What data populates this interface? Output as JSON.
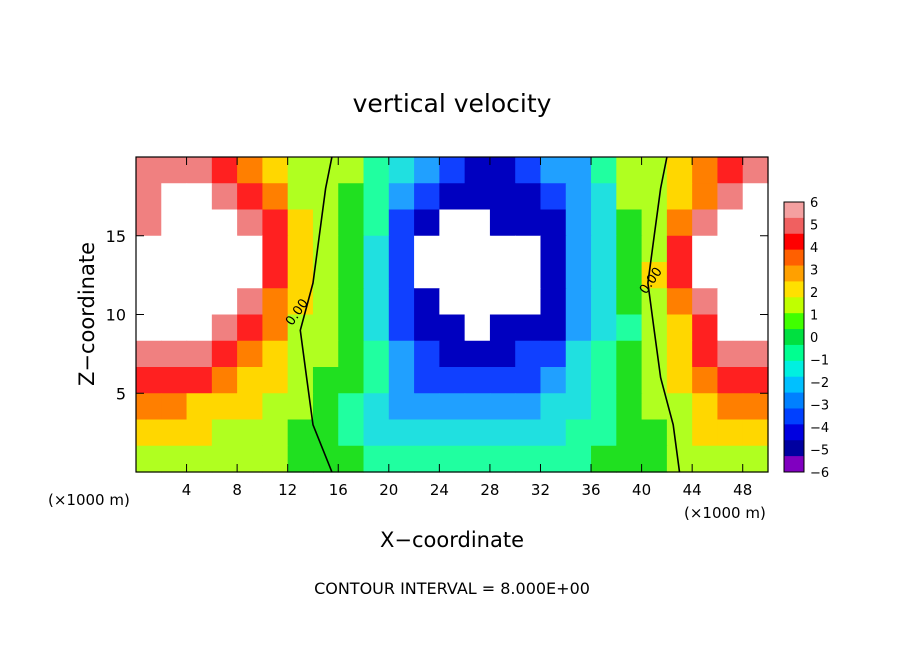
{
  "chart_data": {
    "type": "heatmap",
    "title": "vertical velocity",
    "xlabel": "X−coordinate",
    "ylabel": "Z−coordinate",
    "x_unit_left": "(×1000 m)",
    "x_unit_right": "(×1000 m)",
    "xlim": [
      0,
      50
    ],
    "ylim": [
      0,
      20
    ],
    "x_ticks": [
      4,
      8,
      12,
      16,
      20,
      24,
      28,
      32,
      36,
      40,
      44,
      48
    ],
    "y_ticks": [
      5,
      10,
      15
    ],
    "colorbar": {
      "ticks": [
        "6",
        "5",
        "4",
        "3",
        "2",
        "1",
        "0",
        "−1",
        "−2",
        "−3",
        "−4",
        "−5",
        "−6"
      ],
      "range": [
        -6,
        6
      ]
    },
    "contour_labels": [
      {
        "text": "0.00",
        "x": 13,
        "y": 10
      },
      {
        "text": "0.00",
        "x": 41,
        "y": 12
      }
    ],
    "footer": "CONTOUR INTERVAL = 8.000E+00",
    "cells": [
      [
        "p5",
        "p5",
        "p5",
        "p4",
        "p3",
        "p2",
        "p1",
        "p1",
        "p1",
        "n1",
        "n2",
        "n3",
        "n4",
        "n5",
        "n5",
        "n4",
        "n3",
        "n3",
        "n1",
        "p1",
        "p1",
        "p2",
        "p3",
        "p4",
        "p5"
      ],
      [
        "p5",
        "p6",
        "p6",
        "p5",
        "p4",
        "p3",
        "p1",
        "p1",
        "p0",
        "n1",
        "n3",
        "n4",
        "n5",
        "n5",
        "n5",
        "n5",
        "n4",
        "n3",
        "n2",
        "p1",
        "p1",
        "p2",
        "p3",
        "p5",
        "p6"
      ],
      [
        "p5",
        "p6",
        "p6",
        "p6",
        "p5",
        "p4",
        "p2",
        "p1",
        "p0",
        "n1",
        "n4",
        "n5",
        "n6",
        "n6",
        "n5",
        "n5",
        "n5",
        "n3",
        "n2",
        "p0",
        "p1",
        "p3",
        "p5",
        "p6",
        "p6"
      ],
      [
        "p6",
        "p6",
        "p6",
        "p6",
        "p6",
        "p4",
        "p2",
        "p1",
        "p0",
        "n2",
        "n4",
        "n6",
        "n6",
        "n6",
        "n6",
        "n6",
        "n5",
        "n3",
        "n2",
        "p0",
        "p1",
        "p4",
        "p6",
        "p6",
        "p6"
      ],
      [
        "p6",
        "p6",
        "p6",
        "p6",
        "p6",
        "p4",
        "p2",
        "p1",
        "p0",
        "n2",
        "n4",
        "n6",
        "n6",
        "n6",
        "n6",
        "n6",
        "n5",
        "n3",
        "n2",
        "p0",
        "p2",
        "p4",
        "p6",
        "p6",
        "p6"
      ],
      [
        "p6",
        "p6",
        "p6",
        "p6",
        "p5",
        "p3",
        "p2",
        "p1",
        "p0",
        "n2",
        "n4",
        "n5",
        "n6",
        "n6",
        "n6",
        "n6",
        "n5",
        "n3",
        "n2",
        "p0",
        "p1",
        "p3",
        "p5",
        "p6",
        "p6"
      ],
      [
        "p6",
        "p6",
        "p6",
        "p5",
        "p4",
        "p3",
        "p1",
        "p1",
        "p0",
        "n2",
        "n4",
        "n5",
        "n5",
        "n6",
        "n5",
        "n5",
        "n5",
        "n3",
        "n2",
        "n1",
        "p1",
        "p2",
        "p4",
        "p6",
        "p6"
      ],
      [
        "p5",
        "p5",
        "p5",
        "p4",
        "p3",
        "p2",
        "p1",
        "p1",
        "p0",
        "n1",
        "n3",
        "n4",
        "n5",
        "n5",
        "n5",
        "n4",
        "n4",
        "n2",
        "n1",
        "p0",
        "p1",
        "p2",
        "p4",
        "p5",
        "p5"
      ],
      [
        "p4",
        "p4",
        "p4",
        "p3",
        "p2",
        "p2",
        "p1",
        "p0",
        "p0",
        "n1",
        "n3",
        "n4",
        "n4",
        "n4",
        "n4",
        "n4",
        "n3",
        "n2",
        "n1",
        "p0",
        "p1",
        "p2",
        "p3",
        "p4",
        "p4"
      ],
      [
        "p3",
        "p3",
        "p2",
        "p2",
        "p2",
        "p1",
        "p1",
        "p0",
        "n1",
        "n2",
        "n3",
        "n3",
        "n3",
        "n3",
        "n3",
        "n3",
        "n2",
        "n2",
        "n1",
        "p0",
        "p1",
        "p1",
        "p2",
        "p3",
        "p3"
      ],
      [
        "p2",
        "p2",
        "p2",
        "p1",
        "p1",
        "p1",
        "p0",
        "p0",
        "n1",
        "n2",
        "n2",
        "n2",
        "n2",
        "n2",
        "n2",
        "n2",
        "n2",
        "n1",
        "n1",
        "p0",
        "p0",
        "p1",
        "p2",
        "p2",
        "p2"
      ],
      [
        "p1",
        "p1",
        "p1",
        "p1",
        "p1",
        "p1",
        "p0",
        "p0",
        "p0",
        "n1",
        "n1",
        "n1",
        "n1",
        "n1",
        "n1",
        "n1",
        "n1",
        "n1",
        "p0",
        "p0",
        "p0",
        "p1",
        "p1",
        "p1",
        "p1"
      ]
    ]
  }
}
